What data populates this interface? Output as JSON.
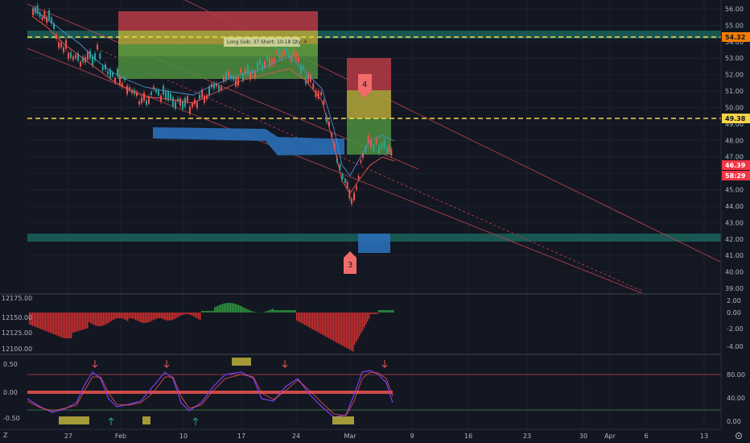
{
  "toolbar": {
    "timezone_icon": "Z"
  },
  "price_axis": {
    "ticks": [
      "56.00",
      "55.00",
      "54.00",
      "53.00",
      "52.00",
      "51.00",
      "50.00",
      "49.00",
      "48.00",
      "47.00",
      "46.00",
      "45.00",
      "44.00",
      "43.00",
      "42.00",
      "41.00",
      "40.00",
      "39.00"
    ]
  },
  "price_tags": [
    {
      "label": "54.32",
      "bg": "#f57c00",
      "fg": "#131722"
    },
    {
      "label": "49.38",
      "bg": "#f7d447",
      "fg": "#131722"
    },
    {
      "label": "46.39",
      "bg": "#f23645",
      "fg": "#ffffff"
    },
    {
      "label": "58:29",
      "bg": "#f23645",
      "fg": "#ffffff"
    }
  ],
  "time_axis": {
    "labels": [
      "27",
      "Feb",
      "10",
      "17",
      "24",
      "Mar",
      "9",
      "16",
      "23",
      "30",
      "Apr",
      "6",
      "13"
    ]
  },
  "trade_box_label": "Long Gob: 37 Short: 10:18 Qty: 4",
  "markers": [
    {
      "label": "4"
    },
    {
      "label": "3"
    }
  ],
  "osc1_axis": {
    "left": [
      "12175.00",
      "12150.00",
      "12125.00",
      "12100.00"
    ],
    "right": [
      "2.00",
      "0.00",
      "-2.00",
      "-4.00"
    ]
  },
  "osc2_axis": {
    "left": [
      "0.50",
      "0.00",
      "-0.50"
    ],
    "right": [
      "80.00",
      "40.00",
      "0.00"
    ]
  },
  "colors": {
    "background": "#131722",
    "grid": "#1e222d",
    "bull_candle": "#26a69a",
    "bear_candle": "#ef5350",
    "zone_red": "#b73b45",
    "zone_yellow": "#b5a83a",
    "zone_green": "#4d8f3e",
    "zone_blue": "#2a6fb8",
    "teal_band": "#1a5e58"
  }
}
